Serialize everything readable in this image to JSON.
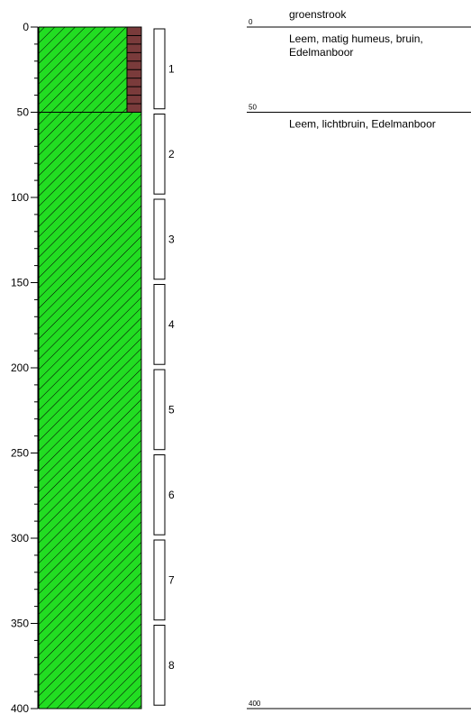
{
  "depth_scale": {
    "min": 0,
    "max": 400,
    "major_ticks": [
      0,
      50,
      100,
      150,
      200,
      250,
      300,
      350,
      400
    ],
    "minor_step": 10
  },
  "lithology_column": {
    "top": 0,
    "bottom": 400,
    "fill_color": "#22dd22",
    "hatch_color": "#000000",
    "layer_boundaries": [
      50
    ]
  },
  "roots_column": {
    "top": 0,
    "bottom": 50,
    "fill_color": "#7a3b3b"
  },
  "samples": [
    {
      "label": "1",
      "top": 0,
      "bottom": 48
    },
    {
      "label": "2",
      "top": 50,
      "bottom": 98
    },
    {
      "label": "3",
      "top": 100,
      "bottom": 148
    },
    {
      "label": "4",
      "top": 150,
      "bottom": 198
    },
    {
      "label": "5",
      "top": 200,
      "bottom": 248
    },
    {
      "label": "6",
      "top": 250,
      "bottom": 298
    },
    {
      "label": "7",
      "top": 300,
      "bottom": 348
    },
    {
      "label": "8",
      "top": 350,
      "bottom": 398
    }
  ],
  "description_markers": [
    {
      "depth_label": "0",
      "depth": 0,
      "title": "groenstrook",
      "lines": [
        "Leem, matig humeus, bruin,",
        "Edelmanboor"
      ]
    },
    {
      "depth_label": "50",
      "depth": 50,
      "title": "",
      "lines": [
        "Leem, lichtbruin, Edelmanboor"
      ]
    },
    {
      "depth_label": "400",
      "depth": 400,
      "title": "",
      "lines": []
    }
  ]
}
